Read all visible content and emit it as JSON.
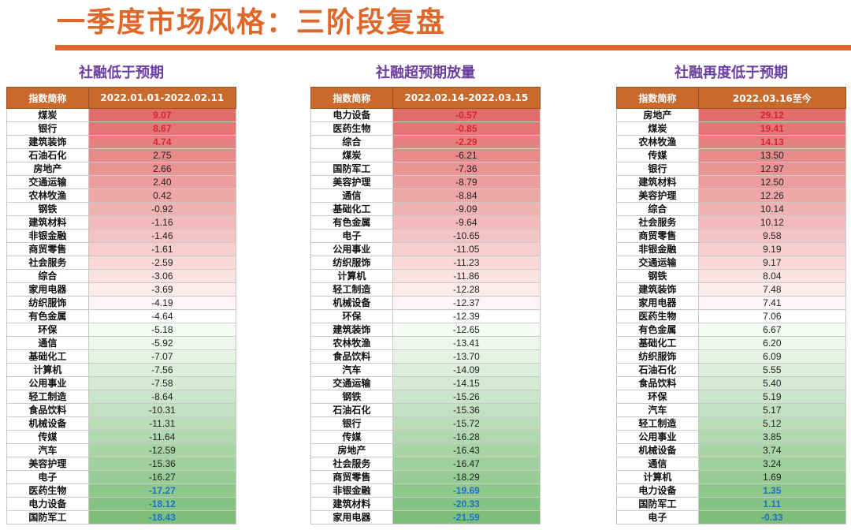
{
  "title": "一季度市场风格：三阶段复盘",
  "colors": {
    "title": "#E0672A",
    "header_bg": "#C96A2C",
    "panel_title": "#6B3FA0",
    "scale_high": "#E36C6C",
    "scale_mid": "#FFFFFF",
    "scale_low": "#7DBF7A",
    "highlight_top_text": "#D8262E",
    "highlight_bottom_text": "#1F6FC9"
  },
  "panels": [
    {
      "title": "社融低于预期",
      "col_name": "指数简称",
      "col_value": "2022.01.01-2022.02.11",
      "rows": [
        {
          "name": "煤炭",
          "value": "9.07",
          "v": 9.07,
          "hl": "hi"
        },
        {
          "name": "银行",
          "value": "8.67",
          "v": 8.67,
          "hl": "hi"
        },
        {
          "name": "建筑装饰",
          "value": "4.74",
          "v": 4.74,
          "hl": "hi"
        },
        {
          "name": "石油石化",
          "value": "2.75",
          "v": 2.75,
          "hl": ""
        },
        {
          "name": "房地产",
          "value": "2.66",
          "v": 2.66,
          "hl": ""
        },
        {
          "name": "交通运输",
          "value": "2.40",
          "v": 2.4,
          "hl": ""
        },
        {
          "name": "农林牧渔",
          "value": "0.42",
          "v": 0.42,
          "hl": ""
        },
        {
          "name": "钢铁",
          "value": "-0.92",
          "v": -0.92,
          "hl": ""
        },
        {
          "name": "建筑材料",
          "value": "-1.16",
          "v": -1.16,
          "hl": ""
        },
        {
          "name": "非银金融",
          "value": "-1.46",
          "v": -1.46,
          "hl": ""
        },
        {
          "name": "商贸零售",
          "value": "-1.61",
          "v": -1.61,
          "hl": ""
        },
        {
          "name": "社会服务",
          "value": "-2.59",
          "v": -2.59,
          "hl": ""
        },
        {
          "name": "综合",
          "value": "-3.06",
          "v": -3.06,
          "hl": ""
        },
        {
          "name": "家用电器",
          "value": "-3.69",
          "v": -3.69,
          "hl": ""
        },
        {
          "name": "纺织服饰",
          "value": "-4.19",
          "v": -4.19,
          "hl": ""
        },
        {
          "name": "有色金属",
          "value": "-4.64",
          "v": -4.64,
          "hl": ""
        },
        {
          "name": "环保",
          "value": "-5.18",
          "v": -5.18,
          "hl": ""
        },
        {
          "name": "通信",
          "value": "-5.92",
          "v": -5.92,
          "hl": ""
        },
        {
          "name": "基础化工",
          "value": "-7.07",
          "v": -7.07,
          "hl": ""
        },
        {
          "name": "计算机",
          "value": "-7.56",
          "v": -7.56,
          "hl": ""
        },
        {
          "name": "公用事业",
          "value": "-7.58",
          "v": -7.58,
          "hl": ""
        },
        {
          "name": "轻工制造",
          "value": "-8.64",
          "v": -8.64,
          "hl": ""
        },
        {
          "name": "食品饮料",
          "value": "-10.31",
          "v": -10.31,
          "hl": ""
        },
        {
          "name": "机械设备",
          "value": "-11.31",
          "v": -11.31,
          "hl": ""
        },
        {
          "name": "传媒",
          "value": "-11.64",
          "v": -11.64,
          "hl": ""
        },
        {
          "name": "汽车",
          "value": "-12.59",
          "v": -12.59,
          "hl": ""
        },
        {
          "name": "美容护理",
          "value": "-15.36",
          "v": -15.36,
          "hl": ""
        },
        {
          "name": "电子",
          "value": "-16.27",
          "v": -16.27,
          "hl": ""
        },
        {
          "name": "医药生物",
          "value": "-17.27",
          "v": -17.27,
          "hl": "lo"
        },
        {
          "name": "电力设备",
          "value": "-18.12",
          "v": -18.12,
          "hl": "lo"
        },
        {
          "name": "国防军工",
          "value": "-18.43",
          "v": -18.43,
          "hl": "lo"
        }
      ]
    },
    {
      "title": "社融超预期放量",
      "col_name": "指数简称",
      "col_value": "2022.02.14-2022.03.15",
      "rows": [
        {
          "name": "电力设备",
          "value": "-0.57",
          "v": -0.57,
          "hl": "hi"
        },
        {
          "name": "医药生物",
          "value": "-0.85",
          "v": -0.85,
          "hl": "hi"
        },
        {
          "name": "综合",
          "value": "-2.29",
          "v": -2.29,
          "hl": "hi"
        },
        {
          "name": "煤炭",
          "value": "-6.21",
          "v": -6.21,
          "hl": ""
        },
        {
          "name": "国防军工",
          "value": "-7.36",
          "v": -7.36,
          "hl": ""
        },
        {
          "name": "美容护理",
          "value": "-8.79",
          "v": -8.79,
          "hl": ""
        },
        {
          "name": "通信",
          "value": "-8.84",
          "v": -8.84,
          "hl": ""
        },
        {
          "name": "基础化工",
          "value": "-9.09",
          "v": -9.09,
          "hl": ""
        },
        {
          "name": "有色金属",
          "value": "-9.64",
          "v": -9.64,
          "hl": ""
        },
        {
          "name": "电子",
          "value": "-10.65",
          "v": -10.65,
          "hl": ""
        },
        {
          "name": "公用事业",
          "value": "-11.05",
          "v": -11.05,
          "hl": ""
        },
        {
          "name": "纺织服饰",
          "value": "-11.23",
          "v": -11.23,
          "hl": ""
        },
        {
          "name": "计算机",
          "value": "-11.86",
          "v": -11.86,
          "hl": ""
        },
        {
          "name": "轻工制造",
          "value": "-12.28",
          "v": -12.28,
          "hl": ""
        },
        {
          "name": "机械设备",
          "value": "-12.37",
          "v": -12.37,
          "hl": ""
        },
        {
          "name": "环保",
          "value": "-12.39",
          "v": -12.39,
          "hl": ""
        },
        {
          "name": "建筑装饰",
          "value": "-12.65",
          "v": -12.65,
          "hl": ""
        },
        {
          "name": "农林牧渔",
          "value": "-13.41",
          "v": -13.41,
          "hl": ""
        },
        {
          "name": "食品饮料",
          "value": "-13.70",
          "v": -13.7,
          "hl": ""
        },
        {
          "name": "汽车",
          "value": "-14.09",
          "v": -14.09,
          "hl": ""
        },
        {
          "name": "交通运输",
          "value": "-14.15",
          "v": -14.15,
          "hl": ""
        },
        {
          "name": "钢铁",
          "value": "-15.26",
          "v": -15.26,
          "hl": ""
        },
        {
          "name": "石油石化",
          "value": "-15.36",
          "v": -15.36,
          "hl": ""
        },
        {
          "name": "银行",
          "value": "-15.72",
          "v": -15.72,
          "hl": ""
        },
        {
          "name": "传媒",
          "value": "-16.28",
          "v": -16.28,
          "hl": ""
        },
        {
          "name": "房地产",
          "value": "-16.43",
          "v": -16.43,
          "hl": ""
        },
        {
          "name": "社会服务",
          "value": "-16.47",
          "v": -16.47,
          "hl": ""
        },
        {
          "name": "商贸零售",
          "value": "-18.29",
          "v": -18.29,
          "hl": ""
        },
        {
          "name": "非银金融",
          "value": "-19.69",
          "v": -19.69,
          "hl": "lo"
        },
        {
          "name": "建筑材料",
          "value": "-20.33",
          "v": -20.33,
          "hl": "lo"
        },
        {
          "name": "家用电器",
          "value": "-21.59",
          "v": -21.59,
          "hl": "lo"
        }
      ]
    },
    {
      "title": "社融再度低于预期",
      "col_name": "指数简称",
      "col_value": "2022.03.16至今",
      "rows": [
        {
          "name": "房地产",
          "value": "29.12",
          "v": 29.12,
          "hl": "hi"
        },
        {
          "name": "煤炭",
          "value": "19.41",
          "v": 19.41,
          "hl": "hi"
        },
        {
          "name": "农林牧渔",
          "value": "14.13",
          "v": 14.13,
          "hl": "hi"
        },
        {
          "name": "传媒",
          "value": "13.50",
          "v": 13.5,
          "hl": ""
        },
        {
          "name": "银行",
          "value": "12.97",
          "v": 12.97,
          "hl": ""
        },
        {
          "name": "建筑材料",
          "value": "12.50",
          "v": 12.5,
          "hl": ""
        },
        {
          "name": "美容护理",
          "value": "12.26",
          "v": 12.26,
          "hl": ""
        },
        {
          "name": "综合",
          "value": "10.14",
          "v": 10.14,
          "hl": ""
        },
        {
          "name": "社会服务",
          "value": "10.12",
          "v": 10.12,
          "hl": ""
        },
        {
          "name": "商贸零售",
          "value": "9.58",
          "v": 9.58,
          "hl": ""
        },
        {
          "name": "非银金融",
          "value": "9.19",
          "v": 9.19,
          "hl": ""
        },
        {
          "name": "交通运输",
          "value": "9.17",
          "v": 9.17,
          "hl": ""
        },
        {
          "name": "钢铁",
          "value": "8.04",
          "v": 8.04,
          "hl": ""
        },
        {
          "name": "建筑装饰",
          "value": "7.48",
          "v": 7.48,
          "hl": ""
        },
        {
          "name": "家用电器",
          "value": "7.41",
          "v": 7.41,
          "hl": ""
        },
        {
          "name": "医药生物",
          "value": "7.06",
          "v": 7.06,
          "hl": ""
        },
        {
          "name": "有色金属",
          "value": "6.67",
          "v": 6.67,
          "hl": ""
        },
        {
          "name": "基础化工",
          "value": "6.20",
          "v": 6.2,
          "hl": ""
        },
        {
          "name": "纺织服饰",
          "value": "6.09",
          "v": 6.09,
          "hl": ""
        },
        {
          "name": "石油石化",
          "value": "5.55",
          "v": 5.55,
          "hl": ""
        },
        {
          "name": "食品饮料",
          "value": "5.40",
          "v": 5.4,
          "hl": ""
        },
        {
          "name": "环保",
          "value": "5.19",
          "v": 5.19,
          "hl": ""
        },
        {
          "name": "汽车",
          "value": "5.17",
          "v": 5.17,
          "hl": ""
        },
        {
          "name": "轻工制造",
          "value": "5.12",
          "v": 5.12,
          "hl": ""
        },
        {
          "name": "公用事业",
          "value": "3.85",
          "v": 3.85,
          "hl": ""
        },
        {
          "name": "机械设备",
          "value": "3.74",
          "v": 3.74,
          "hl": ""
        },
        {
          "name": "通信",
          "value": "3.24",
          "v": 3.24,
          "hl": ""
        },
        {
          "name": "计算机",
          "value": "1.69",
          "v": 1.69,
          "hl": ""
        },
        {
          "name": "电力设备",
          "value": "1.35",
          "v": 1.35,
          "hl": "lo"
        },
        {
          "name": "国防军工",
          "value": "1.11",
          "v": 1.11,
          "hl": "lo"
        },
        {
          "name": "电子",
          "value": "-0.33",
          "v": -0.33,
          "hl": "lo"
        }
      ]
    }
  ]
}
